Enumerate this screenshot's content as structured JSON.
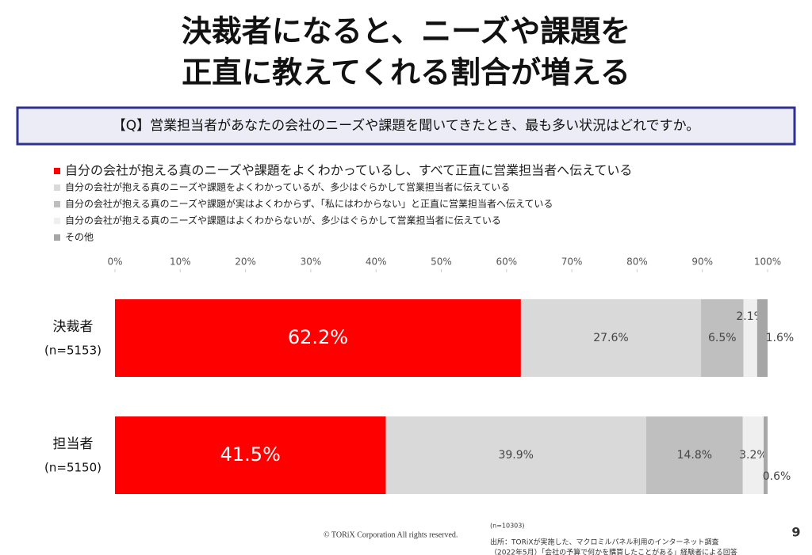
{
  "chart_data": {
    "type": "stacked-bar-horizontal",
    "title": [
      "決裁者になると、ニーズや課題を",
      "正直に教えてくれる割合が増える"
    ],
    "question": "【Q】営業担当者があなたの会社のニーズや課題を聞いてきたとき、最も多い状況はどれですか。",
    "categories": [
      "決裁者",
      "担当者"
    ],
    "category_notes": [
      "(n=5153)",
      "(n=5150)"
    ],
    "series": [
      {
        "name": "自分の会社が抱える真のニーズや課題をよくわかっているし、すべて正直に営業担当者へ伝えている",
        "color": "#ff0000",
        "values": [
          62.2,
          41.5
        ],
        "value_labels": [
          "62.2%",
          "41.5%"
        ]
      },
      {
        "name": "自分の会社が抱える真のニーズや課題をよくわかっているが、多少はぐらかして営業担当者に伝えている",
        "color": "#d9d9d9",
        "values": [
          27.6,
          39.9
        ],
        "value_labels": [
          "27.6%",
          "39.9%"
        ]
      },
      {
        "name": "自分の会社が抱える真のニーズや課題が実はよくわからず、「私にはわからない」と正直に営業担当者へ伝えている",
        "color": "#bfbfbf",
        "values": [
          6.5,
          14.8
        ],
        "value_labels": [
          "6.5%",
          "14.8%"
        ]
      },
      {
        "name": "自分の会社が抱える真のニーズや課題はよくわからないが、多少はぐらかして営業担当者に伝えている",
        "color": "#efefef",
        "values": [
          2.1,
          3.2
        ],
        "value_labels": [
          "2.1%",
          "3.2%"
        ]
      },
      {
        "name": "その他",
        "color": "#a6a6a6",
        "values": [
          1.6,
          0.6
        ],
        "value_labels": [
          "1.6%",
          "0.6%"
        ]
      }
    ],
    "xlim": [
      0,
      100
    ],
    "xticks": [
      {
        "value": 0,
        "label": "0%"
      },
      {
        "value": 10,
        "label": "10%"
      },
      {
        "value": 20,
        "label": "20%"
      },
      {
        "value": 30,
        "label": "30%"
      },
      {
        "value": 40,
        "label": "40%"
      },
      {
        "value": 50,
        "label": "50%"
      },
      {
        "value": 60,
        "label": "60%"
      },
      {
        "value": 70,
        "label": "70%"
      },
      {
        "value": 80,
        "label": "80%"
      },
      {
        "value": 90,
        "label": "90%"
      },
      {
        "value": 100,
        "label": "100%"
      }
    ],
    "copyright": "© TORiX Corporation All rights reserved.",
    "sample": "(n=10303)",
    "source": [
      "出所：TORiXが実施した、マクロミルパネル利用のインターネット調査",
      "（2022年5月）「会社の予算で何かを購買したことがある」経験者による回答"
    ],
    "page_number": "9"
  }
}
